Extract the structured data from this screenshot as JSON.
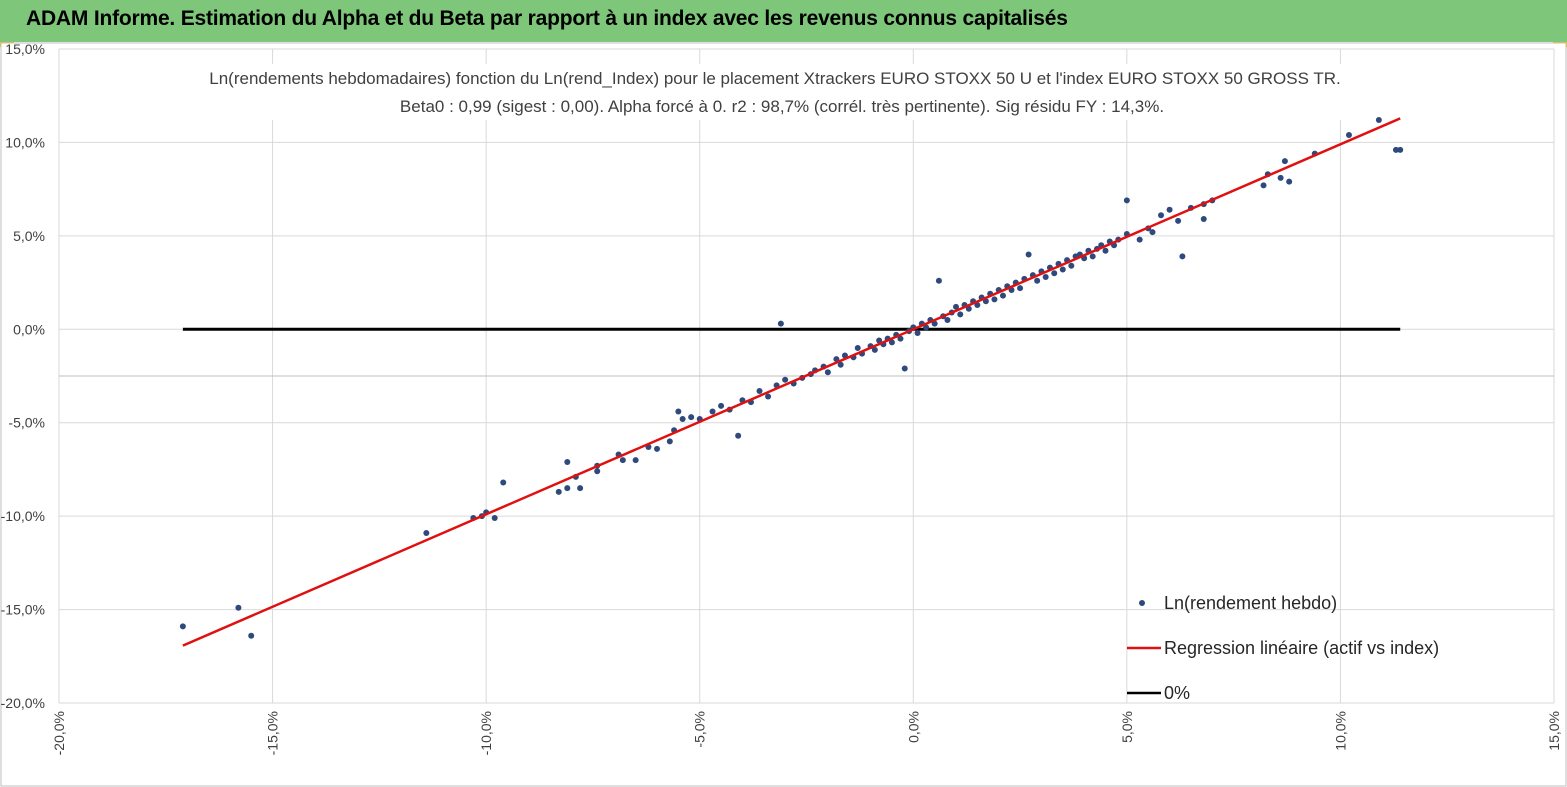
{
  "header": {
    "title": "ADAM Informe. Estimation du Alpha et du Beta par rapport à un index avec les revenus connus capitalisés",
    "background_color": "#7dc67a",
    "corner_mark_color": "#f2c200"
  },
  "chart_data": {
    "type": "scatter",
    "title_line1": "Ln(rendements hebdomadaires) fonction du Ln(rend_Index) pour le placement Xtrackers EURO STOXX 50 U et l'index EURO STOXX 50 GROSS TR.",
    "title_line2": "Beta0 : 0,99 (sigest : 0,00). Alpha forcé à 0. r2 : 98,7% (corrél. très pertinente). Sig résidu FY : 14,3%.",
    "xlabel": "",
    "ylabel": "",
    "xlim": [
      -20,
      15
    ],
    "ylim": [
      -20,
      15
    ],
    "x_ticks": [
      -20,
      -15,
      -10,
      -5,
      0,
      5,
      10,
      15
    ],
    "y_ticks": [
      -20,
      -15,
      -10,
      -5,
      0,
      5,
      10,
      15
    ],
    "x_tick_labels": [
      "-20,0%",
      "-15,0%",
      "-10,0%",
      "-5,0%",
      "0,0%",
      "5,0%",
      "10,0%",
      "15,0%"
    ],
    "y_tick_labels": [
      "-20,0%",
      "-15,0%",
      "-10,0%",
      "-5,0%",
      "0,0%",
      "5,0%",
      "10,0%",
      "15,0%"
    ],
    "grid": true,
    "legend_position": "bottom-right",
    "series": [
      {
        "name": "Ln(rendement hebdo)",
        "kind": "points",
        "color": "#2e4a7d",
        "points": [
          [
            -17.1,
            -15.9
          ],
          [
            -15.8,
            -14.9
          ],
          [
            -15.5,
            -16.4
          ],
          [
            -11.4,
            -10.9
          ],
          [
            -10.3,
            -10.1
          ],
          [
            -10.1,
            -10.0
          ],
          [
            -10.0,
            -9.8
          ],
          [
            -9.8,
            -10.1
          ],
          [
            -9.6,
            -8.2
          ],
          [
            -8.3,
            -8.7
          ],
          [
            -8.1,
            -7.1
          ],
          [
            -8.1,
            -8.5
          ],
          [
            -7.9,
            -7.9
          ],
          [
            -7.8,
            -8.5
          ],
          [
            -7.4,
            -7.6
          ],
          [
            -7.4,
            -7.3
          ],
          [
            -6.9,
            -6.7
          ],
          [
            -6.8,
            -7.0
          ],
          [
            -6.5,
            -7.0
          ],
          [
            -6.2,
            -6.3
          ],
          [
            -6.0,
            -6.4
          ],
          [
            -5.7,
            -6.0
          ],
          [
            -5.6,
            -5.4
          ],
          [
            -5.5,
            -4.4
          ],
          [
            -5.4,
            -4.8
          ],
          [
            -5.2,
            -4.7
          ],
          [
            -5.0,
            -4.8
          ],
          [
            -4.7,
            -4.4
          ],
          [
            -4.5,
            -4.1
          ],
          [
            -4.3,
            -4.3
          ],
          [
            -4.1,
            -5.7
          ],
          [
            -4.0,
            -3.8
          ],
          [
            -3.8,
            -3.9
          ],
          [
            -3.6,
            -3.3
          ],
          [
            -3.4,
            -3.6
          ],
          [
            -3.2,
            -3.0
          ],
          [
            -3.1,
            0.3
          ],
          [
            -3.0,
            -2.7
          ],
          [
            -2.8,
            -2.9
          ],
          [
            -2.6,
            -2.6
          ],
          [
            -2.4,
            -2.4
          ],
          [
            -2.3,
            -2.2
          ],
          [
            -2.1,
            -2.0
          ],
          [
            -2.0,
            -2.3
          ],
          [
            -1.8,
            -1.6
          ],
          [
            -1.7,
            -1.9
          ],
          [
            -1.6,
            -1.4
          ],
          [
            -1.4,
            -1.5
          ],
          [
            -1.3,
            -1.0
          ],
          [
            -1.2,
            -1.3
          ],
          [
            -1.0,
            -0.9
          ],
          [
            -0.9,
            -1.1
          ],
          [
            -0.8,
            -0.6
          ],
          [
            -0.7,
            -0.8
          ],
          [
            -0.6,
            -0.5
          ],
          [
            -0.5,
            -0.7
          ],
          [
            -0.4,
            -0.3
          ],
          [
            -0.3,
            -0.5
          ],
          [
            -0.2,
            -2.1
          ],
          [
            -0.1,
            -0.1
          ],
          [
            0.0,
            0.1
          ],
          [
            0.1,
            -0.2
          ],
          [
            0.2,
            0.3
          ],
          [
            0.3,
            0.1
          ],
          [
            0.4,
            0.5
          ],
          [
            0.5,
            0.3
          ],
          [
            0.6,
            2.6
          ],
          [
            0.7,
            0.7
          ],
          [
            0.8,
            0.5
          ],
          [
            0.9,
            0.9
          ],
          [
            1.0,
            1.2
          ],
          [
            1.1,
            0.8
          ],
          [
            1.2,
            1.3
          ],
          [
            1.3,
            1.1
          ],
          [
            1.4,
            1.5
          ],
          [
            1.5,
            1.3
          ],
          [
            1.6,
            1.7
          ],
          [
            1.7,
            1.5
          ],
          [
            1.8,
            1.9
          ],
          [
            1.9,
            1.6
          ],
          [
            2.0,
            2.1
          ],
          [
            2.1,
            1.8
          ],
          [
            2.2,
            2.3
          ],
          [
            2.3,
            2.1
          ],
          [
            2.4,
            2.5
          ],
          [
            2.5,
            2.2
          ],
          [
            2.6,
            2.7
          ],
          [
            2.7,
            4.0
          ],
          [
            2.8,
            2.9
          ],
          [
            2.9,
            2.6
          ],
          [
            3.0,
            3.1
          ],
          [
            3.1,
            2.8
          ],
          [
            3.2,
            3.3
          ],
          [
            3.3,
            3.0
          ],
          [
            3.4,
            3.5
          ],
          [
            3.5,
            3.2
          ],
          [
            3.6,
            3.7
          ],
          [
            3.7,
            3.4
          ],
          [
            3.8,
            3.9
          ],
          [
            3.9,
            4.0
          ],
          [
            4.0,
            3.8
          ],
          [
            4.1,
            4.2
          ],
          [
            4.2,
            3.9
          ],
          [
            4.3,
            4.3
          ],
          [
            4.4,
            4.5
          ],
          [
            4.5,
            4.2
          ],
          [
            4.6,
            4.7
          ],
          [
            4.7,
            4.5
          ],
          [
            4.8,
            4.8
          ],
          [
            5.0,
            6.9
          ],
          [
            5.0,
            5.1
          ],
          [
            5.3,
            4.8
          ],
          [
            5.5,
            5.4
          ],
          [
            5.6,
            5.2
          ],
          [
            5.8,
            6.1
          ],
          [
            6.0,
            6.4
          ],
          [
            6.2,
            5.8
          ],
          [
            6.3,
            3.9
          ],
          [
            6.5,
            6.5
          ],
          [
            6.8,
            6.7
          ],
          [
            7.0,
            6.9
          ],
          [
            6.8,
            5.9
          ],
          [
            8.2,
            7.7
          ],
          [
            8.3,
            8.3
          ],
          [
            8.6,
            8.1
          ],
          [
            8.7,
            9.0
          ],
          [
            8.8,
            7.9
          ],
          [
            9.4,
            9.4
          ],
          [
            10.2,
            10.4
          ],
          [
            10.9,
            11.2
          ],
          [
            11.3,
            9.6
          ],
          [
            11.4,
            9.6
          ]
        ]
      },
      {
        "name": "Regression linéaire (actif vs index)",
        "kind": "line",
        "color": "#e01010",
        "slope": 0.99,
        "x_range": [
          -17.1,
          11.4
        ]
      },
      {
        "name": "0%",
        "kind": "line",
        "color": "#000000",
        "y": 0,
        "x_range": [
          -17.1,
          11.4
        ]
      }
    ]
  }
}
